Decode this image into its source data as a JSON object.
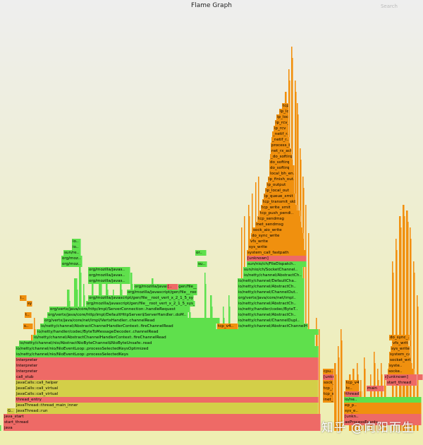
{
  "header": {
    "title": "Flame Graph",
    "search_label": "Search"
  },
  "watermark": "知乎 @向阳而生",
  "colors": {
    "java": "#5fe04c",
    "kernel": "#f0900e",
    "native": "#ee6a66",
    "cpp": "#d3cf48"
  },
  "frames": [
    {
      "label": "java",
      "cls": "f-red"
    },
    {
      "label": "start_thread",
      "cls": "f-red"
    },
    {
      "label": "java_start",
      "cls": "f-red"
    },
    {
      "label": "G..",
      "cls": "f-yellow"
    },
    {
      "label": "JavaThread::run",
      "cls": "f-yellow"
    },
    {
      "label": "JavaThread::thread_main_inner",
      "cls": "f-yellow"
    },
    {
      "label": "thread_entry",
      "cls": "f-red"
    },
    {
      "label": "JavaCalls::call_virtual",
      "cls": "f-yellow"
    },
    {
      "label": "JavaCalls::call_virtual",
      "cls": "f-yellow"
    },
    {
      "label": "JavaCalls::call_helper",
      "cls": "f-yellow"
    },
    {
      "label": "call_stub",
      "cls": "f-red"
    },
    {
      "label": "Interpreter",
      "cls": "f-red"
    },
    {
      "label": "Interpreter",
      "cls": "f-red"
    },
    {
      "label": "Interpreter",
      "cls": "f-red"
    },
    {
      "label": "io/netty/channel/nio/NioEventLoop:.processSelectedKeys",
      "cls": "f-green"
    },
    {
      "label": "io/netty/channel/nio/NioEventLoop:.processSelectedKeysOptimized",
      "cls": "f-green"
    },
    {
      "label": "io/netty/channel/nio/AbstractNioByteChannel$NioByteUnsafe:.read",
      "cls": "f-green"
    },
    {
      "label": "io/netty/channel/AbstractChannelHandlerContext:.fireChannelRead",
      "cls": "f-green"
    },
    {
      "label": "io/netty/handler/codec/ByteToMessageDecoder:.channelRead",
      "cls": "f-green"
    },
    {
      "label": "io/netty/channel/AbstractChannelHandlerContext:.fireChannelRead",
      "cls": "f-green"
    },
    {
      "label": "org/vertx/java/core/net/impl/VertxHandler:.channelRead",
      "cls": "f-green"
    },
    {
      "label": "org/vertx/java/core/http/impl/DefaultHttpServer$ServerHandler:.doM..",
      "cls": "f-green"
    },
    {
      "label": "org/vertx/java/core/http/impl/ServerConnection:.handleRequest",
      "cls": "f-green"
    },
    {
      "label": "org/mozilla/javascript/gen/file__root_vert_x_2_1_5_sys_mods_io..",
      "cls": "f-green"
    },
    {
      "label": "org/mozilla/javascript/gen/file__root_vert_x_2_1_5_sys_mods_io..",
      "cls": "f-green"
    },
    {
      "label": "org/mozilla/javascript/gen/file__root_vert_x_2_1_5..",
      "cls": "f-green"
    },
    {
      "label": "org/mozilla/javascript/gen/file__root_vert_x_2_1..",
      "cls": "f-green"
    },
    {
      "label": "org/mozilla/javas..",
      "cls": "f-green"
    },
    {
      "label": "org/mozilla/javas..",
      "cls": "f-green"
    },
    {
      "label": "org/mozilla/javas..",
      "cls": "f-green"
    },
    {
      "label": "org/moz..",
      "cls": "f-green"
    },
    {
      "label": "org/moz..",
      "cls": "f-green"
    },
    {
      "label": "sun/re..",
      "cls": "f-green"
    },
    {
      "label": "or..",
      "cls": "f-green"
    },
    {
      "label": "io..",
      "cls": "f-green"
    },
    {
      "label": "io..",
      "cls": "f-green"
    },
    {
      "label": "io/netty/channel/AbstractChannelHandlerContext:.write",
      "cls": "f-green"
    },
    {
      "label": "io/netty/channel/ChannelDupl..",
      "cls": "f-green"
    },
    {
      "label": "io/netty/channel/AbstractCh..",
      "cls": "f-green"
    },
    {
      "label": "io/netty/handler/codec/ByteT..",
      "cls": "f-green"
    },
    {
      "label": "io/netty/channel/AbstractCh..",
      "cls": "f-green"
    },
    {
      "label": "org/vertx/java/core/net/impl..",
      "cls": "f-green"
    },
    {
      "label": "io/netty/channel/ChannelOut..",
      "cls": "f-green"
    },
    {
      "label": "io/netty/channel/AbstractCh..",
      "cls": "f-green"
    },
    {
      "label": "io/netty/channel/DefaultCha..",
      "cls": "f-green"
    },
    {
      "label": "io/netty/channel/AbstractCh..",
      "cls": "f-green"
    },
    {
      "label": "sun/nio/ch/SocketChannel..",
      "cls": "f-green"
    },
    {
      "label": "sun/nio/ch/FileDispatch..",
      "cls": "f-green"
    },
    {
      "label": "[unknown]",
      "cls": "f-red"
    },
    {
      "label": "system_call_fastpath",
      "cls": "f-orange"
    },
    {
      "label": "sys_write",
      "cls": "f-orange"
    },
    {
      "label": "vfs_write",
      "cls": "f-orange"
    },
    {
      "label": "do_sync_write",
      "cls": "f-orange"
    },
    {
      "label": "sock_aio_write",
      "cls": "f-orange"
    },
    {
      "label": "inet_sendmsg",
      "cls": "f-orange"
    },
    {
      "label": "tcp_sendmsg",
      "cls": "f-orange"
    },
    {
      "label": "tcp_push_pendi..",
      "cls": "f-orange"
    },
    {
      "label": "tcp_write_xmit",
      "cls": "f-orange"
    },
    {
      "label": "tcp_transmit_skb",
      "cls": "f-orange"
    },
    {
      "label": "ip_queue_xmit",
      "cls": "f-orange"
    },
    {
      "label": "ip_local_out",
      "cls": "f-orange"
    },
    {
      "label": "ip_output",
      "cls": "f-orange"
    },
    {
      "label": "ip_finish_out..",
      "cls": "f-orange"
    },
    {
      "label": "local_bh_en..",
      "cls": "f-orange"
    },
    {
      "label": "do_softirq",
      "cls": "f-orange"
    },
    {
      "label": "do_softirq",
      "cls": "f-orange"
    },
    {
      "label": "_do_softirq",
      "cls": "f-orange"
    },
    {
      "label": "net_rx_act..",
      "cls": "f-orange"
    },
    {
      "label": "process_ba..",
      "cls": "f-orange"
    },
    {
      "label": "_netif_r..",
      "cls": "f-orange"
    },
    {
      "label": "_netif_r..",
      "cls": "f-orange"
    },
    {
      "label": "ip_rcv",
      "cls": "f-orange"
    },
    {
      "label": "ip_rcv_fi..",
      "cls": "f-orange"
    },
    {
      "label": "ip_local..",
      "cls": "f-orange"
    },
    {
      "label": "ip_local_",
      "cls": "f-orange"
    },
    {
      "label": "tcp_v4_rcv",
      "cls": "f-orange"
    },
    {
      "label": "tcp_v4..",
      "cls": "f-orange"
    },
    {
      "label": "tcp_v4..",
      "cls": "f-orange"
    },
    {
      "label": "tc..",
      "cls": "f-orange"
    },
    {
      "label": "t..",
      "cls": "f-orange"
    },
    {
      "label": "io/ne..",
      "cls": "f-green"
    },
    {
      "label": "ep_p..",
      "cls": "f-orange"
    },
    {
      "label": "sys_e..",
      "cls": "f-orange"
    },
    {
      "label": "[unkn..",
      "cls": "f-red"
    },
    {
      "label": "aeProcessEvents",
      "cls": "f-red"
    },
    {
      "label": "aeMain",
      "cls": "f-red"
    },
    {
      "label": "main",
      "cls": "f-red"
    },
    {
      "label": "thread_main",
      "cls": "f-red"
    },
    {
      "label": "start_thread",
      "cls": "f-red"
    },
    {
      "label": "[unknown]",
      "cls": "f-red"
    },
    {
      "label": "socke..",
      "cls": "f-orange"
    },
    {
      "label": "syste..",
      "cls": "f-orange"
    },
    {
      "label": "socket_wri..",
      "cls": "f-orange"
    },
    {
      "label": "system_ca..",
      "cls": "f-orange"
    },
    {
      "label": "sys_write",
      "cls": "f-orange"
    },
    {
      "label": "vfs_write",
      "cls": "f-orange"
    },
    {
      "label": "do_sync_..",
      "cls": "f-orange"
    },
    {
      "label": "inet_se..",
      "cls": "f-orange"
    },
    {
      "label": "tcp_sen..",
      "cls": "f-orange"
    },
    {
      "label": "tcp_..",
      "cls": "f-orange"
    },
    {
      "label": "sock_aio..",
      "cls": "f-orange"
    },
    {
      "label": "[unkno..",
      "cls": "f-red"
    },
    {
      "label": "cpu..",
      "cls": "f-orange"
    },
    {
      "label": "syst..",
      "cls": "f-orange"
    },
    {
      "label": "s..",
      "cls": "f-orange"
    },
    {
      "label": "t..",
      "cls": "f-orange"
    },
    {
      "label": "i..",
      "cls": "f-orange"
    },
    {
      "label": "[..",
      "cls": "f-red"
    },
    {
      "label": "su..",
      "cls": "f-green"
    },
    {
      "label": "io..",
      "cls": "f-green"
    },
    {
      "label": "or..",
      "cls": "f-green"
    },
    {
      "label": "or..",
      "cls": "f-green"
    },
    {
      "label": "org..",
      "cls": "f-green"
    },
    {
      "label": "or..",
      "cls": "f-green"
    }
  ]
}
